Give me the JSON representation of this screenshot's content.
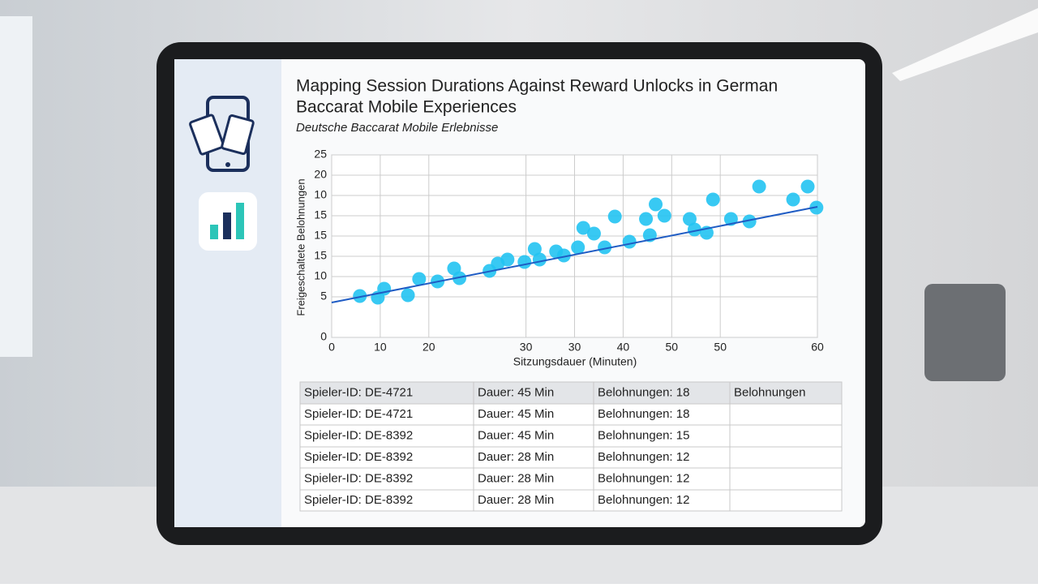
{
  "header": {
    "title_lines": [
      "Mapping Session Durations Against Reward Unlocks in German",
      "Baccarat Mobile Experiences"
    ],
    "subtitle": "Deutsche Baccarat Mobile Erlebnisse"
  },
  "chart_data": {
    "type": "scatter",
    "xlabel": "Sitzungsdauer (Minuten)",
    "ylabel": "Freigeschaltete Belohnungen",
    "xlim": [
      0,
      10
    ],
    "ylim": [
      0,
      9
    ],
    "grid": true,
    "color": "#22c3f2",
    "trend_color": "#1f5cc4",
    "xticks": [
      0,
      {
        "value": 1,
        "label": "10"
      },
      {
        "value": 2,
        "label": "20"
      },
      {
        "value": 4,
        "label": "30"
      },
      {
        "value": 5,
        "label": "30"
      },
      {
        "value": 6,
        "label": "40"
      },
      {
        "value": 7,
        "label": "50"
      },
      {
        "value": 8,
        "label": "50"
      },
      {
        "value": 10,
        "label": "60"
      }
    ],
    "yticks": [
      0,
      {
        "value": 2,
        "label": "5"
      },
      {
        "value": 3,
        "label": "10"
      },
      {
        "value": 4,
        "label": "15"
      },
      {
        "value": 5,
        "label": "15"
      },
      {
        "value": 6,
        "label": "15"
      },
      {
        "value": 7,
        "label": "10"
      },
      {
        "value": 8,
        "label": "20"
      },
      {
        "value": 9,
        "label": "25"
      }
    ],
    "x": [
      0.58,
      0.95,
      1.08,
      1.57,
      1.8,
      2.18,
      2.52,
      2.63,
      3.25,
      3.42,
      3.62,
      3.97,
      4.18,
      4.28,
      4.62,
      4.78,
      5.07,
      5.18,
      5.4,
      5.62,
      5.83,
      6.13,
      6.47,
      6.55,
      6.67,
      6.85,
      7.37,
      7.47,
      7.72,
      7.85,
      8.22,
      8.6,
      8.8,
      9.5,
      9.8,
      9.98
    ],
    "values": [
      2.04,
      1.96,
      2.4,
      2.08,
      2.88,
      2.76,
      3.4,
      2.92,
      3.28,
      3.64,
      3.84,
      3.72,
      4.36,
      3.84,
      4.24,
      4.04,
      4.44,
      5.4,
      5.12,
      4.44,
      5.96,
      4.72,
      5.84,
      5.04,
      6.56,
      6,
      5.84,
      5.32,
      5.16,
      6.8,
      5.84,
      5.72,
      7.44,
      6.8,
      7.44,
      6.4
    ],
    "trendline": {
      "x": [
        0,
        10
      ],
      "values": [
        1.72,
        6.44
      ]
    }
  },
  "table": {
    "rows": [
      [
        "Spieler-ID: DE-4721",
        "Dauer: 45 Min",
        "Belohnungen: 18",
        "Belohnungen"
      ],
      [
        "Spieler-ID: DE-4721",
        "Dauer: 45 Min",
        "Belohnungen: 18"
      ],
      [
        "Spieler-ID: DE-8392",
        "Dauer: 45 Min",
        "Belohnungen: 15"
      ],
      [
        "Spieler-ID: DE-8392",
        "Dauer: 28 Min",
        "Belohnungen: 12"
      ],
      [
        "Spieler-ID: DE-8392",
        "Dauer: 28 Min",
        "Belohnungen: 12"
      ],
      [
        "Spieler-ID: DE-8392",
        "Dauer: 28 Min",
        "Belohnungen: 12"
      ]
    ]
  }
}
